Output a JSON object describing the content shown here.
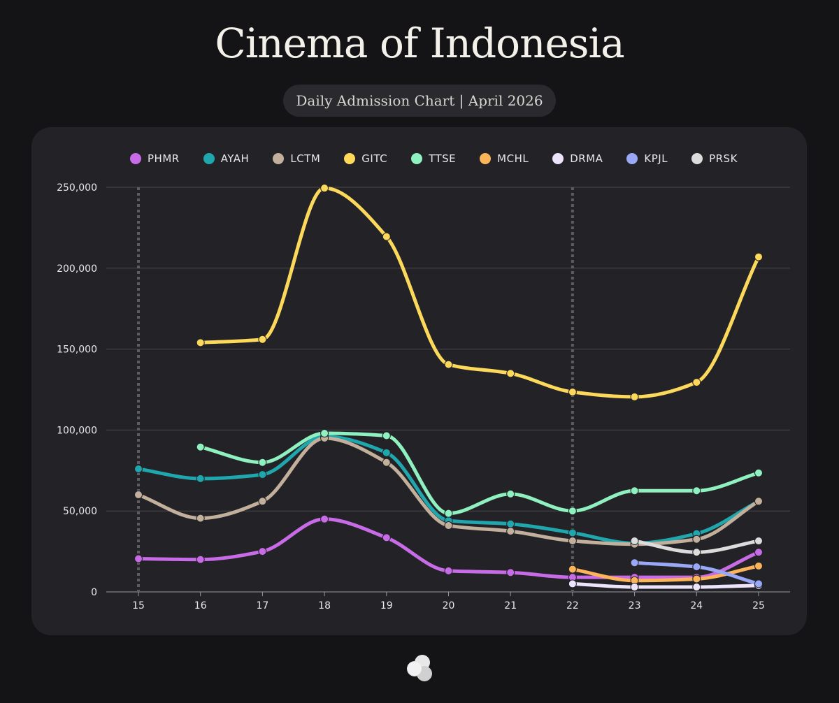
{
  "header": {
    "title": "Cinema of Indonesia",
    "subtitle": "Daily Admission Chart | April 2026"
  },
  "logo": {
    "icon": "cloud-logo-icon"
  },
  "colors": {
    "background": "#141416",
    "card": "#232327",
    "grid": "#4a4a4f",
    "marker_line": "#5c5c61"
  },
  "chart_data": {
    "type": "line",
    "title": "",
    "xlabel": "",
    "ylabel": "",
    "x": [
      15,
      16,
      17,
      18,
      19,
      20,
      21,
      22,
      23,
      24,
      25
    ],
    "x_tick_labels": [
      "15",
      "16",
      "17",
      "18",
      "19",
      "20",
      "21",
      "22",
      "23",
      "24",
      "25"
    ],
    "ylim": [
      0,
      250000
    ],
    "y_ticks": [
      0,
      50000,
      100000,
      150000,
      200000,
      250000
    ],
    "y_tick_labels": [
      "0",
      "50,000",
      "100,000",
      "150,000",
      "200,000",
      "250,000"
    ],
    "grid": true,
    "legend_position": "top",
    "vertical_markers": [
      15,
      22
    ],
    "series": [
      {
        "name": "PHMR",
        "color": "#c86be6",
        "x": [
          15,
          16,
          17,
          18,
          19,
          20,
          21,
          22,
          23,
          24,
          25
        ],
        "values": [
          20500,
          20000,
          25000,
          45000,
          33500,
          13000,
          12000,
          9000,
          9000,
          9000,
          24500
        ]
      },
      {
        "name": "AYAH",
        "color": "#1fa7ad",
        "x": [
          15,
          16,
          17,
          18,
          19,
          20,
          21,
          22,
          23,
          24,
          25
        ],
        "values": [
          76000,
          70000,
          72500,
          96000,
          86000,
          44000,
          42000,
          36500,
          30000,
          36000,
          56000
        ]
      },
      {
        "name": "LCTM",
        "color": "#c2b09c",
        "x": [
          15,
          16,
          17,
          18,
          19,
          20,
          21,
          22,
          23,
          24,
          25
        ],
        "values": [
          60000,
          45500,
          56000,
          95000,
          80000,
          41000,
          37500,
          31500,
          29500,
          32500,
          56000
        ]
      },
      {
        "name": "GITC",
        "color": "#fcd95a",
        "x": [
          16,
          17,
          18,
          19,
          20,
          21,
          22,
          23,
          24,
          25
        ],
        "values": [
          154000,
          156000,
          249500,
          219500,
          140500,
          135000,
          123500,
          120500,
          129500,
          207000
        ]
      },
      {
        "name": "TTSE",
        "color": "#8ff0c0",
        "x": [
          16,
          17,
          18,
          19,
          20,
          21,
          22,
          23,
          24,
          25
        ],
        "values": [
          89500,
          80000,
          98000,
          96500,
          48500,
          60500,
          50000,
          62500,
          62500,
          73500
        ]
      },
      {
        "name": "MCHL",
        "color": "#fbb45a",
        "x": [
          22,
          23,
          24,
          25
        ],
        "values": [
          14000,
          7000,
          8000,
          16000
        ]
      },
      {
        "name": "DRMA",
        "color": "#ede3fb",
        "x": [
          22,
          23,
          24,
          25
        ],
        "values": [
          5000,
          3000,
          3000,
          4000
        ]
      },
      {
        "name": "KPJL",
        "color": "#9aa8f8",
        "x": [
          23,
          24,
          25
        ],
        "values": [
          18000,
          15500,
          5000
        ]
      },
      {
        "name": "PRSK",
        "color": "#dcdcdc",
        "x": [
          23,
          24,
          25
        ],
        "values": [
          31500,
          24500,
          31500
        ]
      }
    ]
  }
}
